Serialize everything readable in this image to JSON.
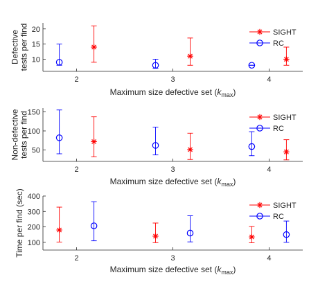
{
  "chart_data": [
    {
      "type": "errorbar",
      "ylabel_lines": [
        "Defective",
        "tests per find"
      ],
      "xlabel_main": "Maximum size defective set (",
      "xlabel_italic": "k",
      "xlabel_sub": "max",
      "xlabel_end": ")",
      "xlim": [
        1.65,
        4.35
      ],
      "ylim": [
        6,
        22
      ],
      "xticks": [
        2,
        3,
        4
      ],
      "yticks": [
        10,
        15,
        20
      ],
      "legend_position": "top-right",
      "series": [
        {
          "name": "SIGHT",
          "color": "#ff0000",
          "marker": "star",
          "points": [
            {
              "x": 2.18,
              "y": 14,
              "low": 9,
              "high": 21
            },
            {
              "x": 3.18,
              "y": 11,
              "low": 8,
              "high": 17
            },
            {
              "x": 4.18,
              "y": 10,
              "low": 8,
              "high": 14
            }
          ]
        },
        {
          "name": "RC",
          "color": "#0000ff",
          "marker": "circle",
          "points": [
            {
              "x": 1.82,
              "y": 9,
              "low": 8,
              "high": 15
            },
            {
              "x": 2.82,
              "y": 8,
              "low": 7,
              "high": 10
            },
            {
              "x": 3.82,
              "y": 8,
              "low": 8,
              "high": 8
            }
          ]
        }
      ]
    },
    {
      "type": "errorbar",
      "ylabel_lines": [
        "Non-defective",
        "tests per find"
      ],
      "xlabel_main": "Maximum size defective set (",
      "xlabel_italic": "k",
      "xlabel_sub": "max",
      "xlabel_end": ")",
      "xlim": [
        1.65,
        4.35
      ],
      "ylim": [
        20,
        160
      ],
      "xticks": [
        2,
        3,
        4
      ],
      "yticks": [
        50,
        100,
        150
      ],
      "legend_position": "top-right",
      "series": [
        {
          "name": "SIGHT",
          "color": "#ff0000",
          "marker": "star",
          "points": [
            {
              "x": 2.18,
              "y": 72,
              "low": 32,
              "high": 137
            },
            {
              "x": 3.18,
              "y": 51,
              "low": 25,
              "high": 94
            },
            {
              "x": 4.18,
              "y": 45,
              "low": 24,
              "high": 77
            }
          ]
        },
        {
          "name": "RC",
          "color": "#0000ff",
          "marker": "circle",
          "points": [
            {
              "x": 1.82,
              "y": 82,
              "low": 40,
              "high": 155
            },
            {
              "x": 2.82,
              "y": 62,
              "low": 37,
              "high": 110
            },
            {
              "x": 3.82,
              "y": 59,
              "low": 35,
              "high": 98
            }
          ]
        }
      ]
    },
    {
      "type": "errorbar",
      "ylabel_lines": [
        "Time per find (sec)"
      ],
      "xlabel_main": "Maximum size defective set (",
      "xlabel_italic": "k",
      "xlabel_sub": "max",
      "xlabel_end": ")",
      "xlim": [
        1.65,
        4.35
      ],
      "ylim": [
        50,
        400
      ],
      "xticks": [
        2,
        3,
        4
      ],
      "yticks": [
        100,
        200,
        300,
        400
      ],
      "legend_position": "top-right",
      "series": [
        {
          "name": "SIGHT",
          "color": "#ff0000",
          "marker": "star",
          "points": [
            {
              "x": 1.82,
              "y": 180,
              "low": 102,
              "high": 328
            },
            {
              "x": 2.82,
              "y": 140,
              "low": 98,
              "high": 225
            },
            {
              "x": 3.82,
              "y": 135,
              "low": 97,
              "high": 203
            }
          ]
        },
        {
          "name": "RC",
          "color": "#0000ff",
          "marker": "circle",
          "points": [
            {
              "x": 2.18,
              "y": 207,
              "low": 110,
              "high": 363
            },
            {
              "x": 3.18,
              "y": 160,
              "low": 103,
              "high": 272
            },
            {
              "x": 4.18,
              "y": 150,
              "low": 100,
              "high": 238
            }
          ]
        }
      ]
    }
  ]
}
